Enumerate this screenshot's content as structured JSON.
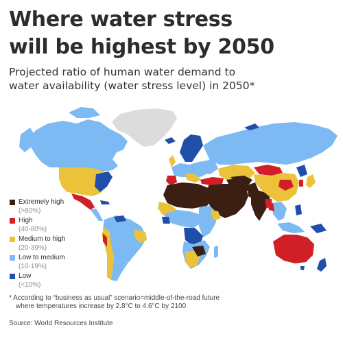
{
  "title_line1": "Where water stress",
  "title_line2": "will be highest by 2050",
  "subtitle_line1": "Projected ratio of human water demand to",
  "subtitle_line2": "water availability (water stress level) in 2050*",
  "colors": {
    "extremely_high": "#3b1f13",
    "high": "#d01f26",
    "medium_to_high": "#ebc23a",
    "low_to_medium": "#7db9f2",
    "low": "#1f4fa8",
    "no_data": "#dcdcdc"
  },
  "legend": [
    {
      "label": "Extremely high",
      "range": "(>80%)",
      "color": "#3b1f13"
    },
    {
      "label": "High",
      "range": "(40-80%)",
      "color": "#d01f26"
    },
    {
      "label": "Medium to high",
      "range": "(20-39%)",
      "color": "#ebc23a"
    },
    {
      "label": "Low to medium",
      "range": "(10-19%)",
      "color": "#7db9f2"
    },
    {
      "label": "Low",
      "range": "(<10%)",
      "color": "#1f4fa8"
    }
  ],
  "footnote_line1": "* According to “business as usual” scenario=middle-of-the-road future",
  "footnote_line2": "where temperatures increase by 2.8°C to 4.6°C by 2100",
  "source": "Source: World Resources Institute"
}
